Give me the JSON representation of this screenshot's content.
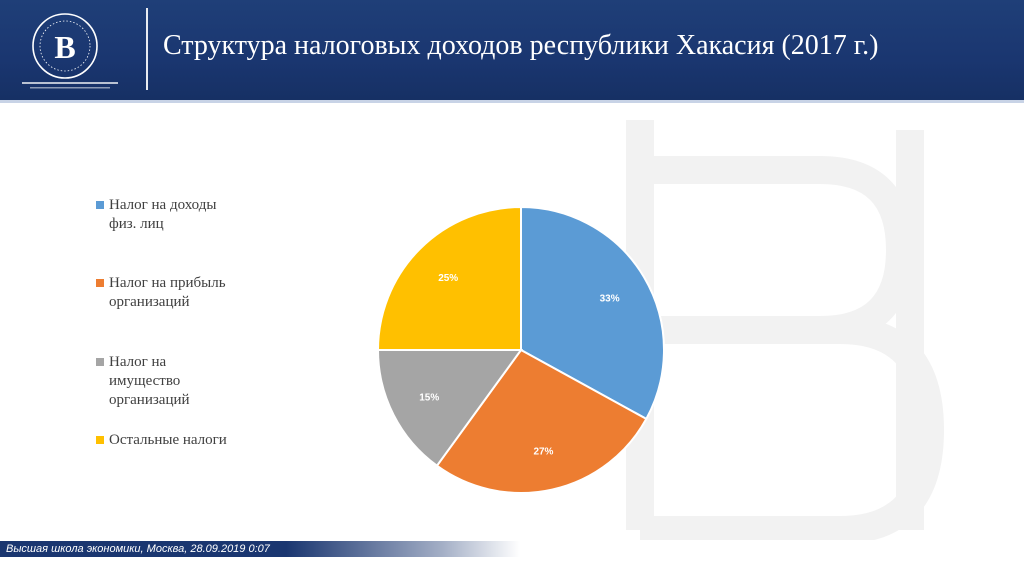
{
  "header": {
    "title": "Структура налоговых доходов республики Хакасия (2017 г.)"
  },
  "footer": {
    "text": "Высшая школа экономики, Москва, 28.09.2019 0:07"
  },
  "colors": {
    "header_bg": "#1a3670",
    "series": [
      "#5b9bd5",
      "#ed7d31",
      "#a5a5a5",
      "#ffc000"
    ]
  },
  "legend": {
    "items": [
      {
        "label_lines": [
          "Налог на доходы",
          "физ. лиц"
        ]
      },
      {
        "label_lines": [
          "Налог на прибыль",
          "организаций"
        ]
      },
      {
        "label_lines": [
          "Налог на",
          "имущество",
          "организаций"
        ]
      },
      {
        "label_lines": [
          "Остальные налоги"
        ]
      }
    ]
  },
  "chart_data": {
    "type": "pie",
    "categories": [
      "Налог на доходы физ. лиц",
      "Налог на прибыль организаций",
      "Налог на имущество организаций",
      "Остальные налоги"
    ],
    "values": [
      33,
      27,
      15,
      25
    ],
    "data_labels": [
      "33%",
      "27%",
      "15%",
      "25%"
    ],
    "colors": [
      "#5b9bd5",
      "#ed7d31",
      "#a5a5a5",
      "#ffc000"
    ],
    "legend_position": "left"
  }
}
